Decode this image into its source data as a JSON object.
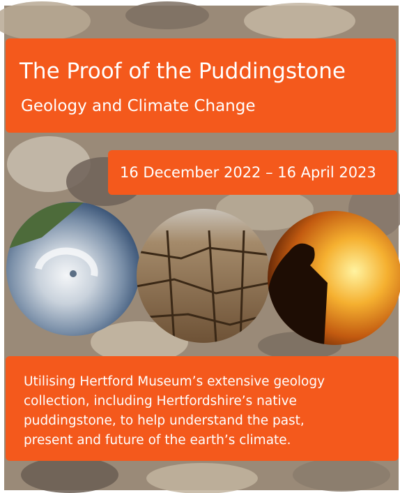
{
  "poster": {
    "title": "The Proof of the Puddingstone",
    "subtitle": "Geology and Climate Change",
    "dates": "16 December 2022 – 16 April 2023",
    "description_lines": [
      "Utilising Hertford Museum’s extensive geology",
      "collection, including Hertfordshire’s native",
      "puddingstone, to help understand the past,",
      "present and future of the earth’s climate."
    ]
  }
}
